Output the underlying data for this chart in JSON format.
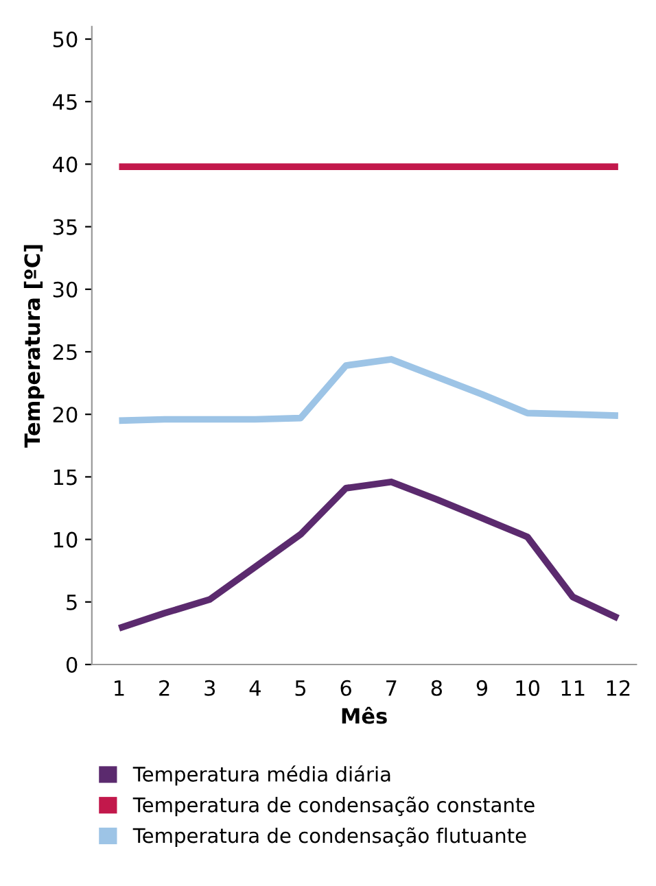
{
  "chart_data": {
    "type": "line",
    "xlabel": "Mês",
    "ylabel": "Temperatura [ºC]",
    "categories": [
      "1",
      "2",
      "3",
      "4",
      "5",
      "6",
      "7",
      "8",
      "9",
      "10",
      "11",
      "12"
    ],
    "series": [
      {
        "name": "Temperatura média diária",
        "color": "#5b2a6e",
        "values": [
          2.9,
          4.1,
          5.2,
          7.8,
          10.4,
          14.1,
          14.6,
          13.2,
          11.7,
          10.2,
          5.4,
          3.7
        ]
      },
      {
        "name": "Temperatura de condensação constante",
        "color": "#c2184b",
        "values": [
          39.8,
          39.8,
          39.8,
          39.8,
          39.8,
          39.8,
          39.8,
          39.8,
          39.8,
          39.8,
          39.8,
          39.8
        ]
      },
      {
        "name": "Temperatura de condensação flutuante",
        "color": "#9dc4e6",
        "values": [
          19.5,
          19.6,
          19.6,
          19.6,
          19.7,
          23.9,
          24.4,
          23.0,
          21.6,
          20.1,
          20.0,
          19.9
        ]
      }
    ],
    "ylim": [
      0,
      51
    ],
    "yticks": [
      0,
      5,
      10,
      15,
      20,
      25,
      30,
      35,
      40,
      45,
      50
    ],
    "grid": false,
    "legend": "bottom",
    "marker": "none",
    "line_style": "solid"
  }
}
